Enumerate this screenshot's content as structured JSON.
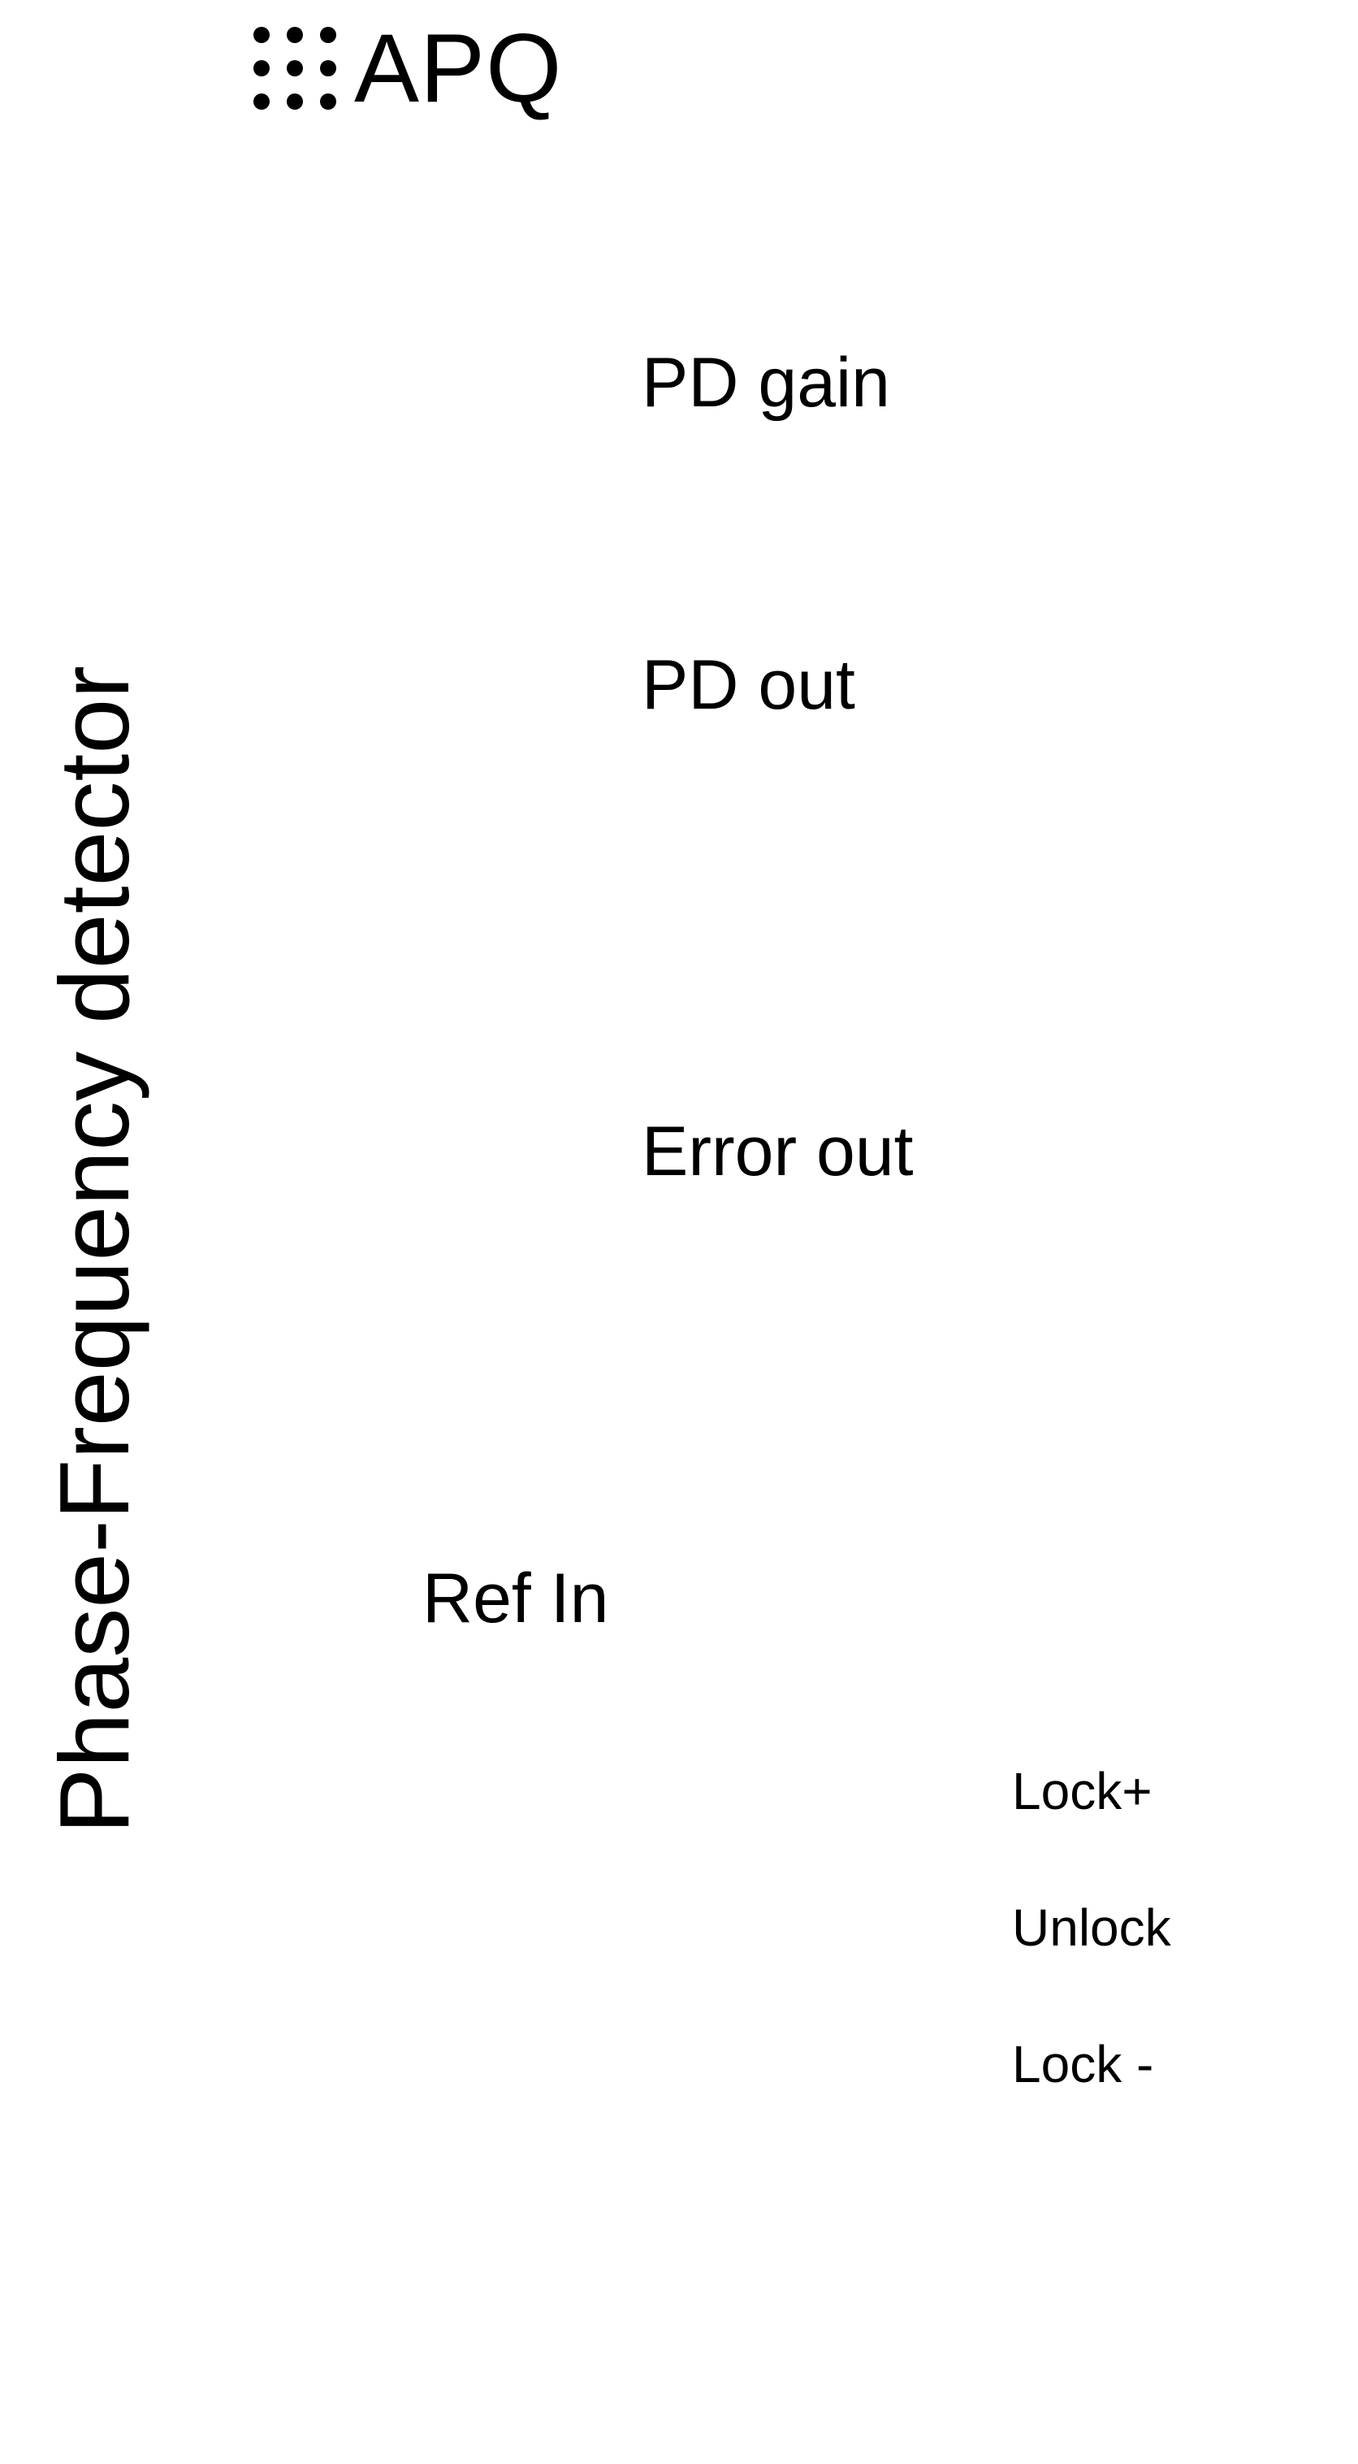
{
  "brand": {
    "logo_icon": "dot-grid-icon",
    "name": "APQ"
  },
  "module": {
    "title": "Phase-Frequency detector"
  },
  "labels": {
    "pd_gain": "PD gain",
    "pd_out": "PD out",
    "error_out": "Error out",
    "ref_in": "Ref In",
    "lock_plus": "Lock+",
    "unlock": "Unlock",
    "lock_minus": "Lock -"
  },
  "colors": {
    "background": "#ffffff",
    "foreground": "#000000"
  }
}
